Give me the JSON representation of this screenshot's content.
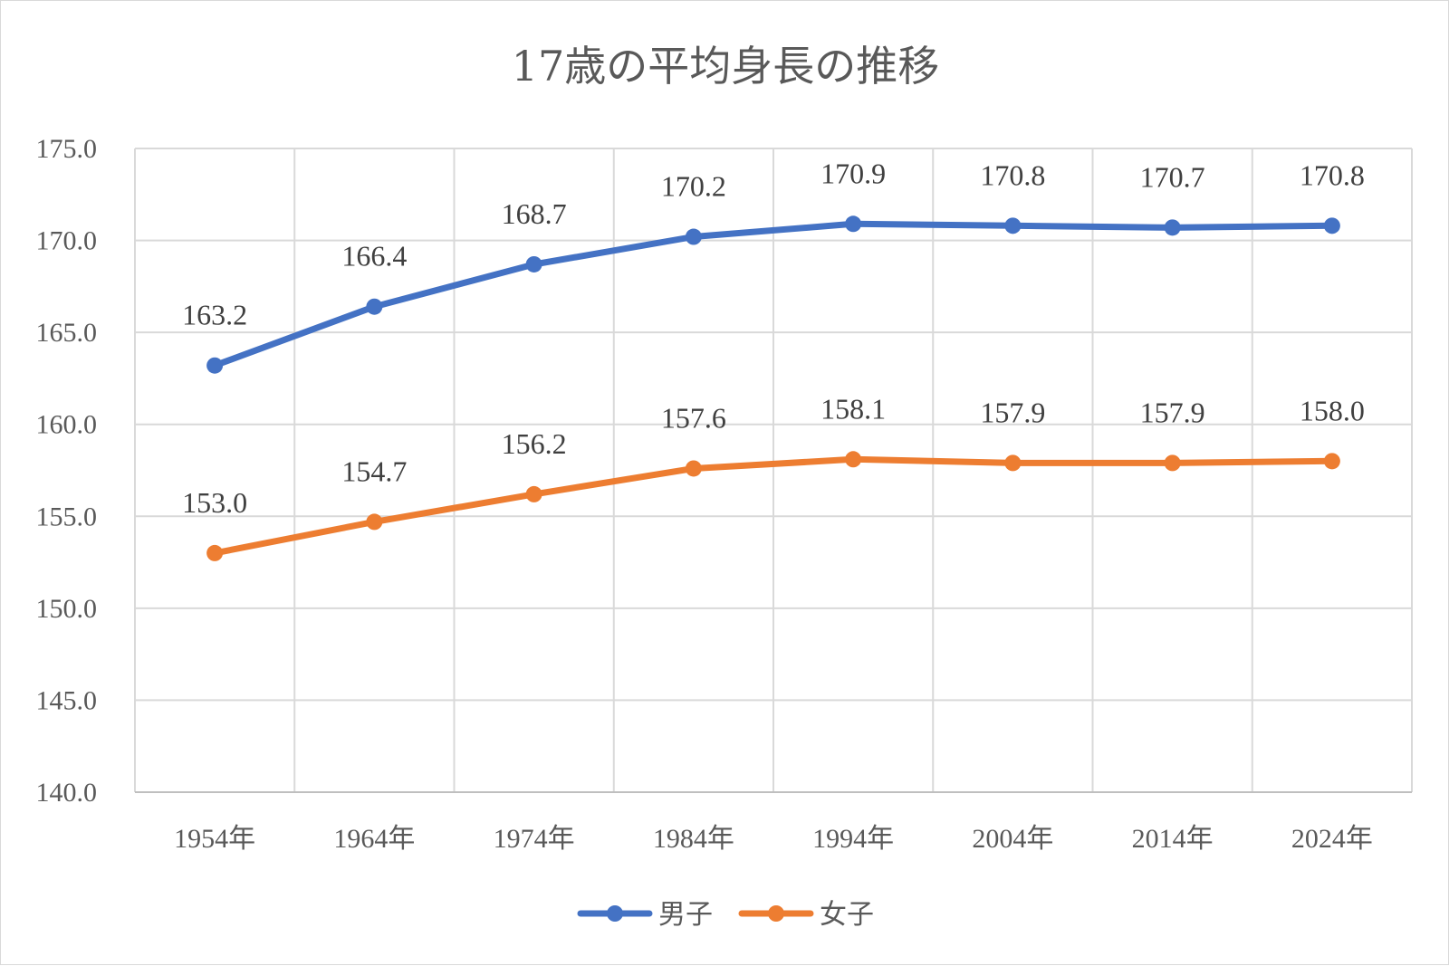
{
  "chart_data": {
    "type": "line",
    "title": "17歳の平均身長の推移",
    "categories": [
      "1954年",
      "1964年",
      "1974年",
      "1984年",
      "1994年",
      "2004年",
      "2014年",
      "2024年"
    ],
    "series": [
      {
        "name": "男子",
        "color": "#4472C4",
        "values": [
          163.2,
          166.4,
          168.7,
          170.2,
          170.9,
          170.8,
          170.7,
          170.8
        ],
        "labels": [
          "163.2",
          "166.4",
          "168.7",
          "170.2",
          "170.9",
          "170.8",
          "170.7",
          "170.8"
        ]
      },
      {
        "name": "女子",
        "color": "#ED7D31",
        "values": [
          153.0,
          154.7,
          156.2,
          157.6,
          158.1,
          157.9,
          157.9,
          158.0
        ],
        "labels": [
          "153.0",
          "154.7",
          "156.2",
          "157.6",
          "158.1",
          "157.9",
          "157.9",
          "158.0"
        ]
      }
    ],
    "ylim": [
      140,
      175
    ],
    "yticks": [
      "140.0",
      "145.0",
      "150.0",
      "155.0",
      "160.0",
      "165.0",
      "170.0",
      "175.0"
    ],
    "grid": true,
    "legend": "bottom"
  }
}
